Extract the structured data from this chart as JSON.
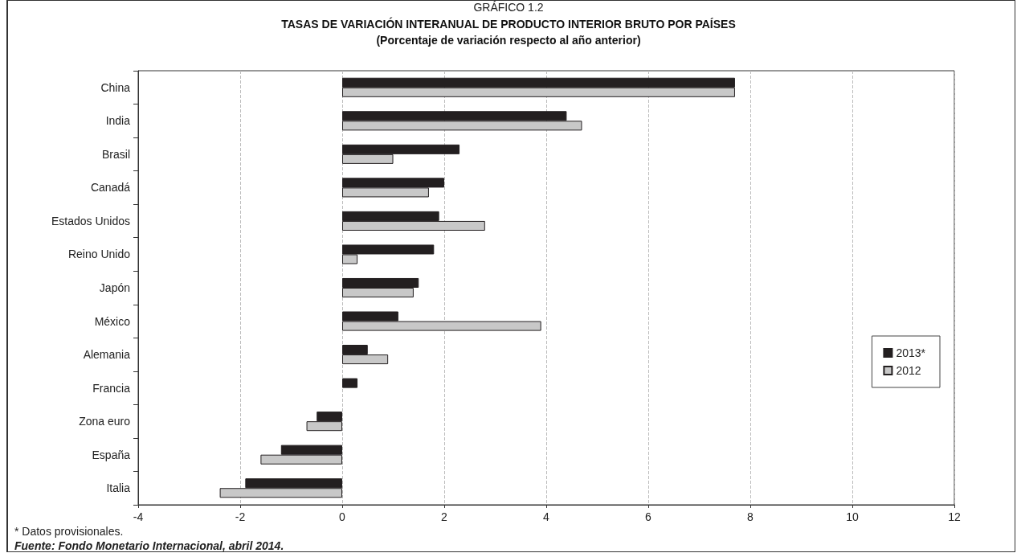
{
  "chart_data": {
    "type": "bar",
    "orientation": "horizontal",
    "title": "TASAS DE VARIACIÓN INTERANUAL DE PRODUCTO INTERIOR BRUTO POR PAÍSES",
    "subtitle": "(Porcentaje de variación respecto al año anterior)",
    "annotations": [
      "GRÁFICO 1.2",
      "* Datos provisionales.",
      "Fuente: Fondo Monetario Internacional, abril 2014."
    ],
    "categories": [
      "China",
      "India",
      "Brasil",
      "Canadá",
      "Estados Unidos",
      "Reino Unido",
      "Japón",
      "México",
      "Alemania",
      "Francia",
      "Zona euro",
      "España",
      "Italia"
    ],
    "series": [
      {
        "name": "2013*",
        "color": "#231f20",
        "values": [
          7.7,
          4.4,
          2.3,
          2.0,
          1.9,
          1.8,
          1.5,
          1.1,
          0.5,
          0.3,
          -0.5,
          -1.2,
          -1.9
        ]
      },
      {
        "name": "2012",
        "color": "#c8c8c8",
        "values": [
          7.7,
          4.7,
          1.0,
          1.7,
          2.8,
          0.3,
          1.4,
          3.9,
          0.9,
          null,
          -0.7,
          -1.6,
          -2.4
        ]
      }
    ],
    "xlim": [
      -4,
      12
    ],
    "xticks": [
      -4,
      -2,
      0,
      2,
      4,
      6,
      8,
      10,
      12
    ],
    "grid": "x",
    "legend": "right"
  }
}
